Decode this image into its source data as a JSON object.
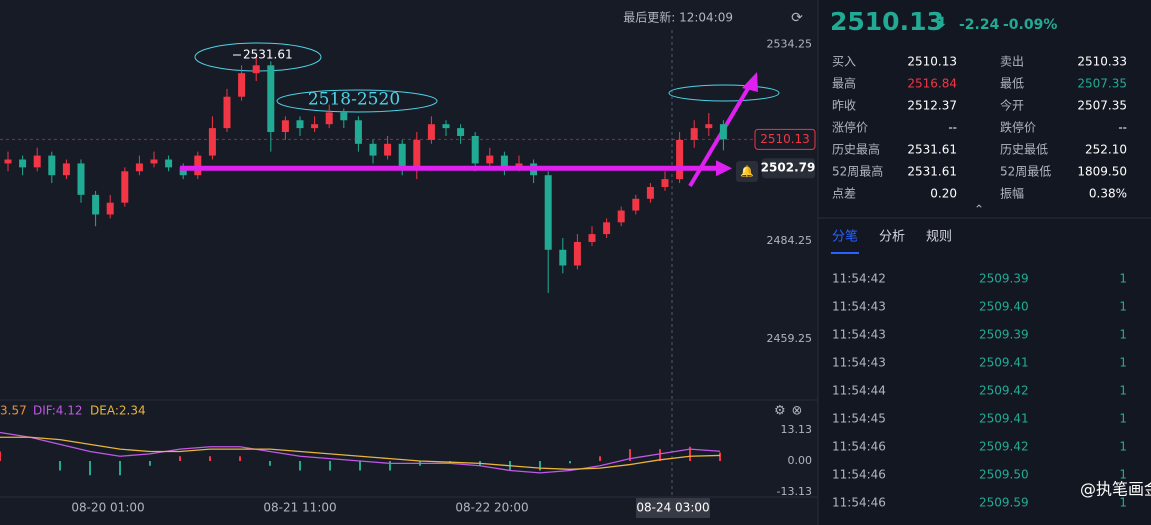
{
  "header": {
    "last_update": "最后更新: 12:04:09"
  },
  "chart_data": [
    {
      "type": "candlestick",
      "up_color": "#f23645",
      "down_color": "#22ab94",
      "ohlc": [
        [
          2504,
          2507,
          2502,
          2505
        ],
        [
          2505,
          2506,
          2501,
          2503
        ],
        [
          2503,
          2508,
          2502,
          2506
        ],
        [
          2506,
          2507,
          2499,
          2501
        ],
        [
          2501,
          2505,
          2500,
          2504
        ],
        [
          2504,
          2505,
          2494,
          2496
        ],
        [
          2496,
          2497,
          2488,
          2491
        ],
        [
          2491,
          2496,
          2490,
          2494
        ],
        [
          2494,
          2503,
          2493,
          2502
        ],
        [
          2502,
          2506,
          2501,
          2504
        ],
        [
          2504,
          2507,
          2503,
          2505
        ],
        [
          2505,
          2506,
          2502,
          2503
        ],
        [
          2503,
          2504,
          2500,
          2501
        ],
        [
          2501,
          2507,
          2500,
          2506
        ],
        [
          2506,
          2516,
          2505,
          2513
        ],
        [
          2513,
          2523,
          2512,
          2521
        ],
        [
          2521,
          2529,
          2520,
          2527
        ],
        [
          2527,
          2531.61,
          2525,
          2529
        ],
        [
          2529,
          2530,
          2507,
          2512
        ],
        [
          2512,
          2516,
          2510,
          2515
        ],
        [
          2515,
          2516,
          2511,
          2513
        ],
        [
          2513,
          2516,
          2512,
          2514
        ],
        [
          2514,
          2519,
          2513,
          2517
        ],
        [
          2517,
          2518,
          2513,
          2515
        ],
        [
          2515,
          2516,
          2507,
          2509
        ],
        [
          2509,
          2510,
          2504,
          2506
        ],
        [
          2506,
          2511,
          2505,
          2509
        ],
        [
          2509,
          2510,
          2501,
          2503
        ],
        [
          2503,
          2512,
          2500,
          2510
        ],
        [
          2510,
          2516,
          2509,
          2514
        ],
        [
          2514,
          2515,
          2511,
          2513
        ],
        [
          2513,
          2514,
          2509,
          2511
        ],
        [
          2511,
          2512,
          2502,
          2504
        ],
        [
          2504,
          2508,
          2503,
          2506
        ],
        [
          2506,
          2507,
          2501,
          2503
        ],
        [
          2503,
          2506,
          2502,
          2504
        ],
        [
          2504,
          2505,
          2499,
          2501
        ],
        [
          2501,
          2502,
          2471,
          2482
        ],
        [
          2482,
          2485,
          2476,
          2478
        ],
        [
          2478,
          2486,
          2477,
          2484
        ],
        [
          2484,
          2488,
          2483,
          2486
        ],
        [
          2486,
          2490,
          2485,
          2489
        ],
        [
          2489,
          2493,
          2488,
          2492
        ],
        [
          2492,
          2496,
          2491,
          2495
        ],
        [
          2495,
          2499,
          2494,
          2498
        ],
        [
          2498,
          2502,
          2497,
          2500
        ],
        [
          2500,
          2512,
          2499,
          2510
        ],
        [
          2510,
          2515,
          2508,
          2513
        ],
        [
          2513,
          2516.84,
          2511,
          2514
        ],
        [
          2514,
          2515,
          2507.35,
          2510.13
        ]
      ],
      "ylim": [
        2445,
        2538
      ],
      "yticks": [
        2534.25,
        2484.25,
        2459.25
      ],
      "price_tags": [
        2510.13,
        2502.79
      ],
      "annotations": [
        "2531.61",
        "2518-2520"
      ],
      "x_labels": [
        "08-20 01:00",
        "08-21 11:00",
        "08-22 20:00"
      ],
      "crosshair_label": "08-24 03:00"
    },
    {
      "type": "macd",
      "legend": [
        "3.57",
        "DIF:4.12",
        "DEA:2.34"
      ],
      "series": [
        {
          "name": "DIF",
          "color": "#c158e8",
          "values": [
            12,
            10,
            7,
            4,
            2,
            3,
            5,
            6,
            6,
            4,
            2,
            1,
            0,
            -1,
            -1,
            -1,
            -2,
            -4,
            -5,
            -4,
            -2,
            1,
            3,
            5,
            4.12
          ]
        },
        {
          "name": "DEA",
          "color": "#e8b53a",
          "values": [
            10,
            10,
            9,
            7,
            5,
            4,
            4,
            5,
            5,
            5,
            4,
            3,
            2,
            1,
            0,
            -0.5,
            -1,
            -2,
            -3,
            -3.5,
            -3,
            -1.5,
            0.5,
            2,
            2.34
          ]
        }
      ],
      "macd": [
        4,
        0,
        -4,
        -6,
        -6,
        -2,
        2,
        2,
        2,
        -2,
        -4,
        -4,
        -4,
        -4,
        -2,
        -1,
        -2,
        -4,
        -4,
        -1,
        2,
        5,
        5,
        6,
        3.57
      ],
      "ylim": [
        -16,
        16
      ],
      "yticks": [
        13.13,
        {
          "value": 0,
          "label": "0.00"
        },
        -13.13
      ]
    }
  ],
  "quote": {
    "price": "2510.13",
    "change": "-2.24",
    "pct": "-0.09%",
    "rows": [
      [
        "买入",
        "2510.13",
        "卖出",
        "2510.33"
      ],
      [
        "最高",
        "2516.84",
        "最低",
        "2507.35"
      ],
      [
        "昨收",
        "2512.37",
        "今开",
        "2507.35"
      ],
      [
        "涨停价",
        "--",
        "跌停价",
        "--"
      ],
      [
        "历史最高",
        "2531.61",
        "历史最低",
        "252.10"
      ],
      [
        "52周最高",
        "2531.61",
        "52周最低",
        "1809.50"
      ],
      [
        "点差",
        "0.20",
        "振幅",
        "0.38%"
      ]
    ]
  },
  "tabs": [
    "分笔",
    "分析",
    "规则"
  ],
  "trades": [
    [
      "11:54:42",
      "2509.39",
      "1"
    ],
    [
      "11:54:43",
      "2509.40",
      "1"
    ],
    [
      "11:54:43",
      "2509.39",
      "1"
    ],
    [
      "11:54:43",
      "2509.41",
      "1"
    ],
    [
      "11:54:44",
      "2509.42",
      "1"
    ],
    [
      "11:54:45",
      "2509.41",
      "1"
    ],
    [
      "11:54:46",
      "2509.42",
      "1"
    ],
    [
      "11:54:46",
      "2509.50",
      "1"
    ],
    [
      "11:54:46",
      "2509.59",
      "1"
    ]
  ],
  "watermark": "@执笔画金"
}
